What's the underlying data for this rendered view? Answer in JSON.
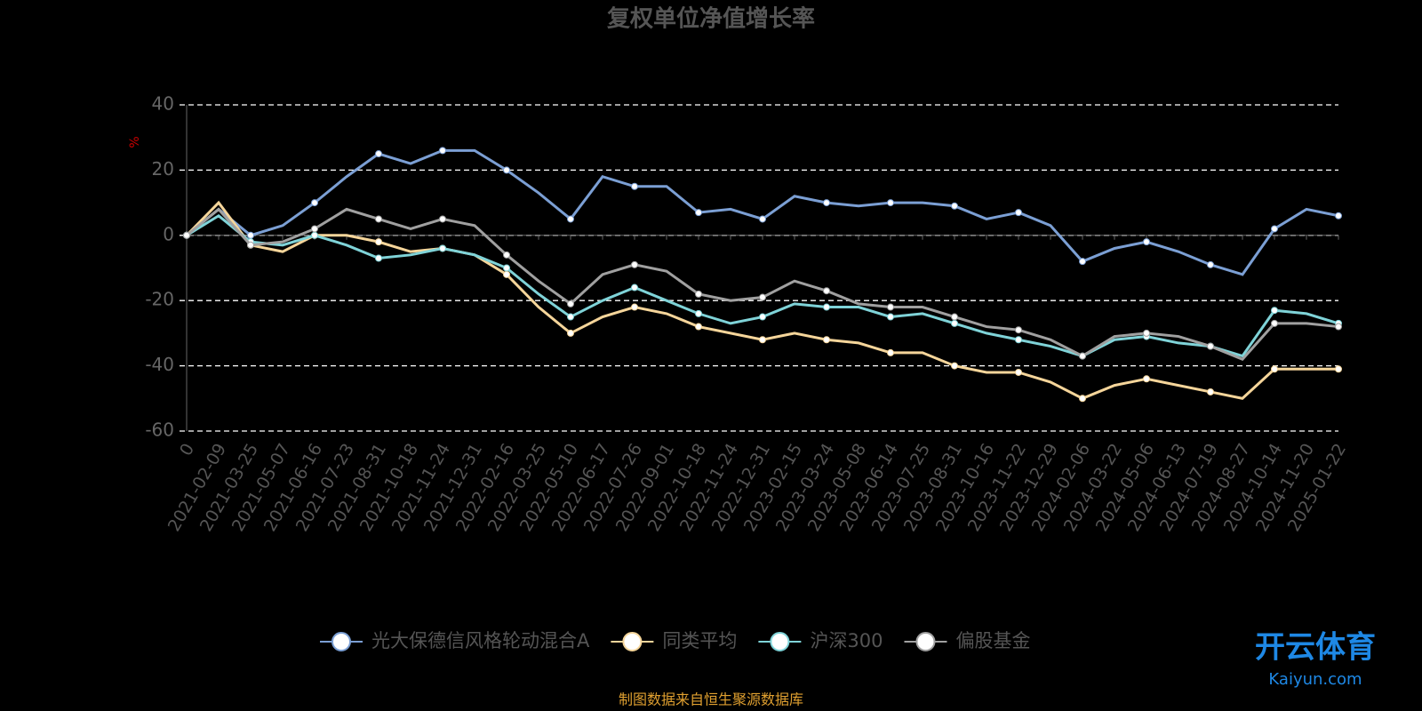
{
  "chart_data": {
    "type": "line",
    "title": "复权单位净值增长率",
    "y_label": "%",
    "categories": [
      "0",
      "2021-02-09",
      "2021-03-25",
      "2021-05-07",
      "2021-06-16",
      "2021-07-23",
      "2021-08-31",
      "2021-10-18",
      "2021-11-24",
      "2021-12-31",
      "2022-02-16",
      "2022-03-25",
      "2022-05-10",
      "2022-06-17",
      "2022-07-26",
      "2022-09-01",
      "2022-10-18",
      "2022-11-24",
      "2022-12-31",
      "2023-02-15",
      "2023-03-24",
      "2023-05-08",
      "2023-06-14",
      "2023-07-25",
      "2023-08-31",
      "2023-10-16",
      "2023-11-22",
      "2023-12-29",
      "2024-02-06",
      "2024-03-22",
      "2024-05-06",
      "2024-06-13",
      "2024-07-19",
      "2024-08-27",
      "2024-10-14",
      "2024-11-20",
      "2025-01-22"
    ],
    "series": [
      {
        "name": "光大保德信风格轮动混合A",
        "color": "#7b9fd4",
        "values": [
          0,
          8,
          0,
          3,
          10,
          18,
          25,
          22,
          26,
          26,
          20,
          13,
          5,
          18,
          15,
          15,
          7,
          8,
          5,
          12,
          10,
          9,
          10,
          10,
          9,
          5,
          7,
          3,
          -8,
          -4,
          -2,
          -5,
          -9,
          -12,
          2,
          8,
          6
        ]
      },
      {
        "name": "同类平均",
        "color": "#f5d59a",
        "values": [
          0,
          10,
          -3,
          -5,
          0,
          0,
          -2,
          -5,
          -4,
          -6,
          -12,
          -22,
          -30,
          -25,
          -22,
          -24,
          -28,
          -30,
          -32,
          -30,
          -32,
          -33,
          -36,
          -36,
          -40,
          -42,
          -42,
          -45,
          -50,
          -46,
          -44,
          -46,
          -48,
          -50,
          -41,
          -41,
          -41
        ]
      },
      {
        "name": "沪深300",
        "color": "#7fd3d8",
        "values": [
          0,
          6,
          -2,
          -3,
          0,
          -3,
          -7,
          -6,
          -4,
          -6,
          -10,
          -18,
          -25,
          -20,
          -16,
          -20,
          -24,
          -27,
          -25,
          -21,
          -22,
          -22,
          -25,
          -24,
          -27,
          -30,
          -32,
          -34,
          -37,
          -32,
          -31,
          -33,
          -34,
          -37,
          -23,
          -24,
          -27
        ]
      },
      {
        "name": "偏股基金",
        "color": "#a0a0a0",
        "values": [
          0,
          8,
          -3,
          -2,
          2,
          8,
          5,
          2,
          5,
          3,
          -6,
          -14,
          -21,
          -12,
          -9,
          -11,
          -18,
          -20,
          -19,
          -14,
          -17,
          -21,
          -22,
          -22,
          -25,
          -28,
          -29,
          -32,
          -37,
          -31,
          -30,
          -31,
          -34,
          -38,
          -27,
          -27,
          -28
        ]
      }
    ],
    "ylim": [
      -60,
      40
    ],
    "yticks": [
      -60,
      -40,
      -20,
      0,
      20,
      40
    ],
    "grid": true,
    "source": "制图数据来自恒生聚源数据库",
    "watermark": "开云体育",
    "watermark_url": "Kaiyun.com"
  }
}
